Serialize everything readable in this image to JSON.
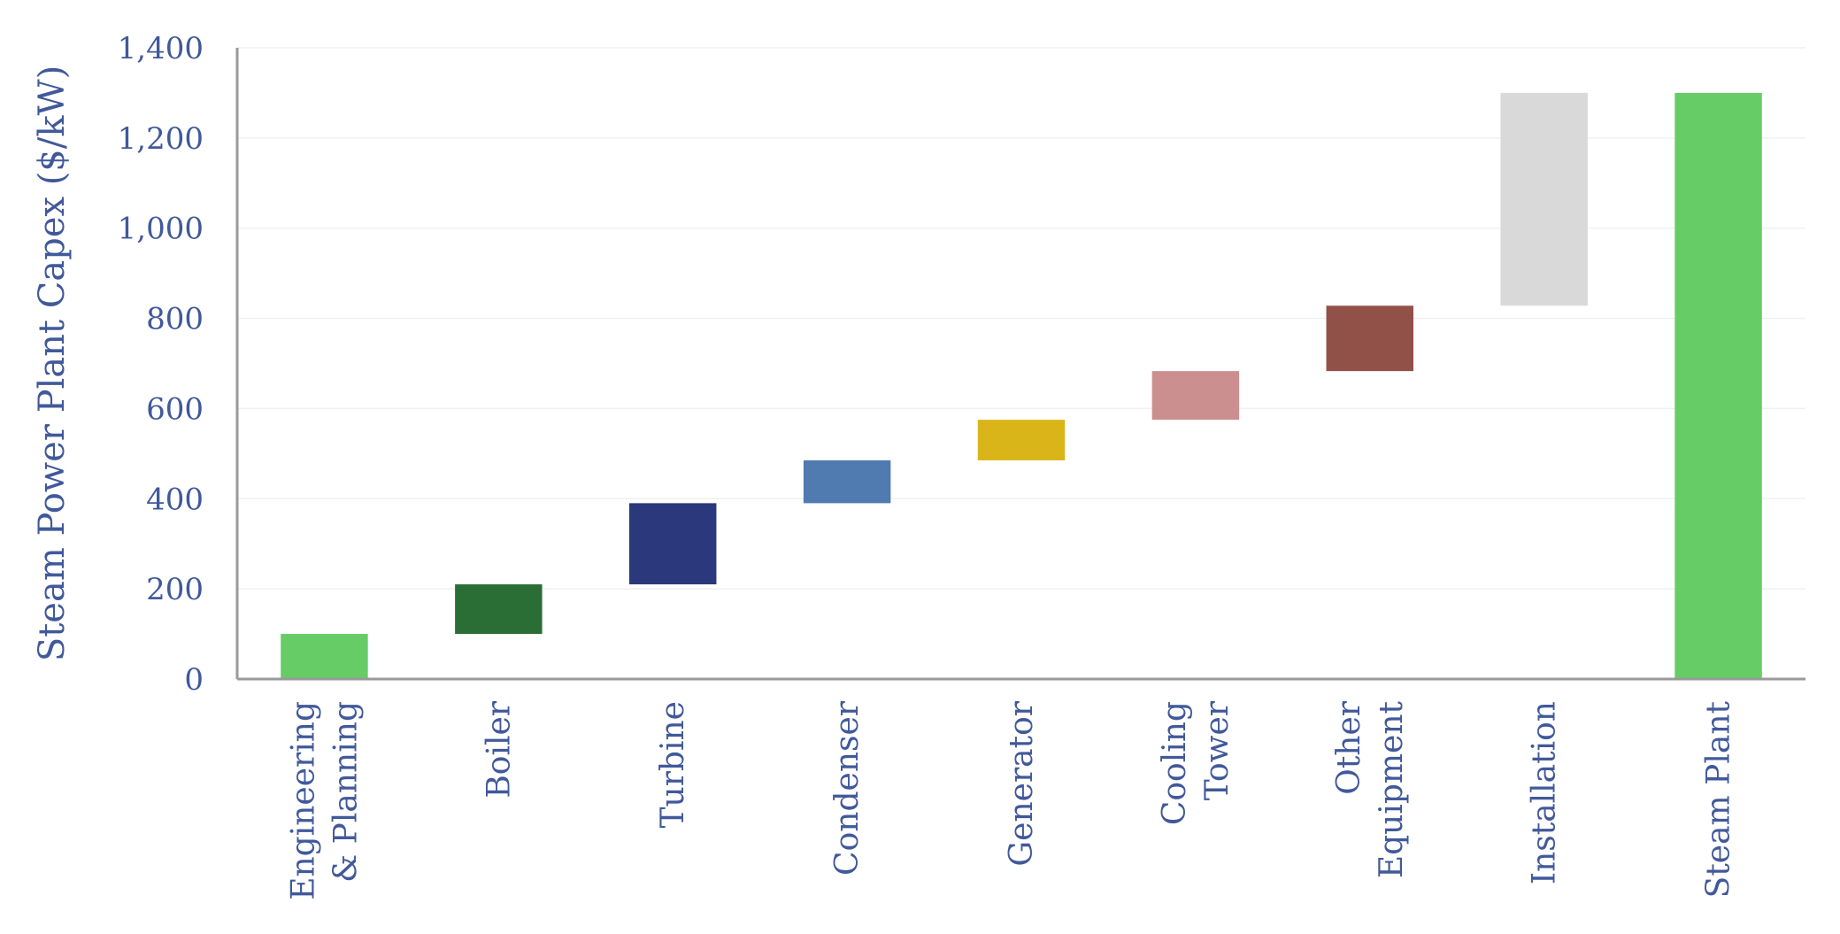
{
  "chart_data": {
    "type": "bar",
    "subtype": "waterfall",
    "title": "",
    "ylabel": "Steam Power Plant Capex ($/kW)",
    "xlabel": "",
    "ylim": [
      0,
      1400
    ],
    "yticks": [
      0,
      200,
      400,
      600,
      800,
      1000,
      1200,
      1400
    ],
    "ytick_labels": [
      "0",
      "200",
      "400",
      "600",
      "800",
      "1,000",
      "1,200",
      "1,400"
    ],
    "grid": true,
    "legend": "none",
    "categories": [
      {
        "lines": [
          "Engineering",
          "& Planning"
        ]
      },
      {
        "lines": [
          "Boiler"
        ]
      },
      {
        "lines": [
          "Turbine"
        ]
      },
      {
        "lines": [
          "Condenser"
        ]
      },
      {
        "lines": [
          "Generator"
        ]
      },
      {
        "lines": [
          "Cooling",
          "Tower"
        ]
      },
      {
        "lines": [
          "Other",
          "Equipment"
        ]
      },
      {
        "lines": [
          "Installation"
        ]
      },
      {
        "lines": [
          "Steam Plant"
        ]
      }
    ],
    "bars": [
      {
        "base": 0,
        "value": 100,
        "color": "#66cc66"
      },
      {
        "base": 100,
        "value": 110,
        "color": "#2a6e36"
      },
      {
        "base": 210,
        "value": 180,
        "color": "#2b387c"
      },
      {
        "base": 390,
        "value": 95,
        "color": "#4f7bb0"
      },
      {
        "base": 485,
        "value": 90,
        "color": "#d9b51a"
      },
      {
        "base": 575,
        "value": 108,
        "color": "#cc8f8f"
      },
      {
        "base": 683,
        "value": 145,
        "color": "#915149"
      },
      {
        "base": 828,
        "value": 472,
        "color": "#d9d9d9"
      },
      {
        "base": 0,
        "value": 1300,
        "color": "#66cc66"
      }
    ]
  }
}
